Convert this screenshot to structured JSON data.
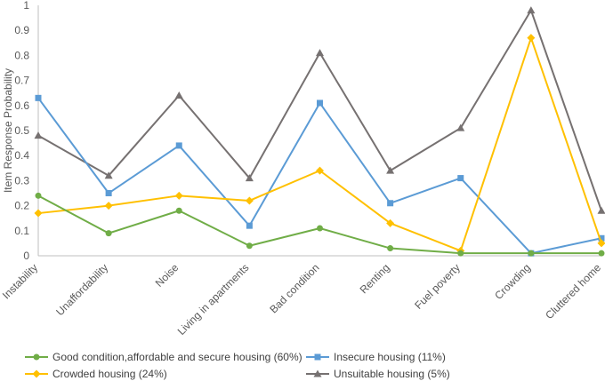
{
  "chart_data": {
    "type": "line",
    "title": "",
    "xlabel": "",
    "ylabel": "Item Response Probability",
    "ylim": [
      0,
      1
    ],
    "yticks": [
      0,
      0.1,
      0.2,
      0.3,
      0.4,
      0.5,
      0.6,
      0.7,
      0.8,
      0.9,
      1
    ],
    "ytick_labels": [
      "0",
      "0.1",
      "0.2",
      "0.3",
      "0.4",
      "0.5",
      "0.6",
      "0.7",
      "0.8",
      "0.9",
      "1"
    ],
    "grid": false,
    "legend_position": "bottom",
    "categories": [
      "Instability",
      "Unaffordability",
      "Noise",
      "Living in apartments",
      "Bad condition",
      "Renting",
      "Fuel poverty",
      "Crowding",
      "Cluttered home"
    ],
    "series": [
      {
        "name": "Good condition,affordable and secure housing (60%)",
        "color": "#70ad47",
        "marker": "circle",
        "values": [
          0.24,
          0.09,
          0.18,
          0.04,
          0.11,
          0.03,
          0.01,
          0.01,
          0.01
        ]
      },
      {
        "name": "Insecure housing (11%)",
        "color": "#5b9bd5",
        "marker": "square",
        "values": [
          0.63,
          0.25,
          0.44,
          0.12,
          0.61,
          0.21,
          0.31,
          0.01,
          0.07
        ]
      },
      {
        "name": "Crowded housing (24%)",
        "color": "#ffc000",
        "marker": "diamond",
        "values": [
          0.17,
          0.2,
          0.24,
          0.22,
          0.34,
          0.13,
          0.02,
          0.87,
          0.05
        ]
      },
      {
        "name": "Unsuitable housing (5%)",
        "color": "#767171",
        "marker": "triangle",
        "values": [
          0.48,
          0.32,
          0.64,
          0.31,
          0.81,
          0.34,
          0.51,
          0.98,
          0.18
        ]
      }
    ]
  }
}
